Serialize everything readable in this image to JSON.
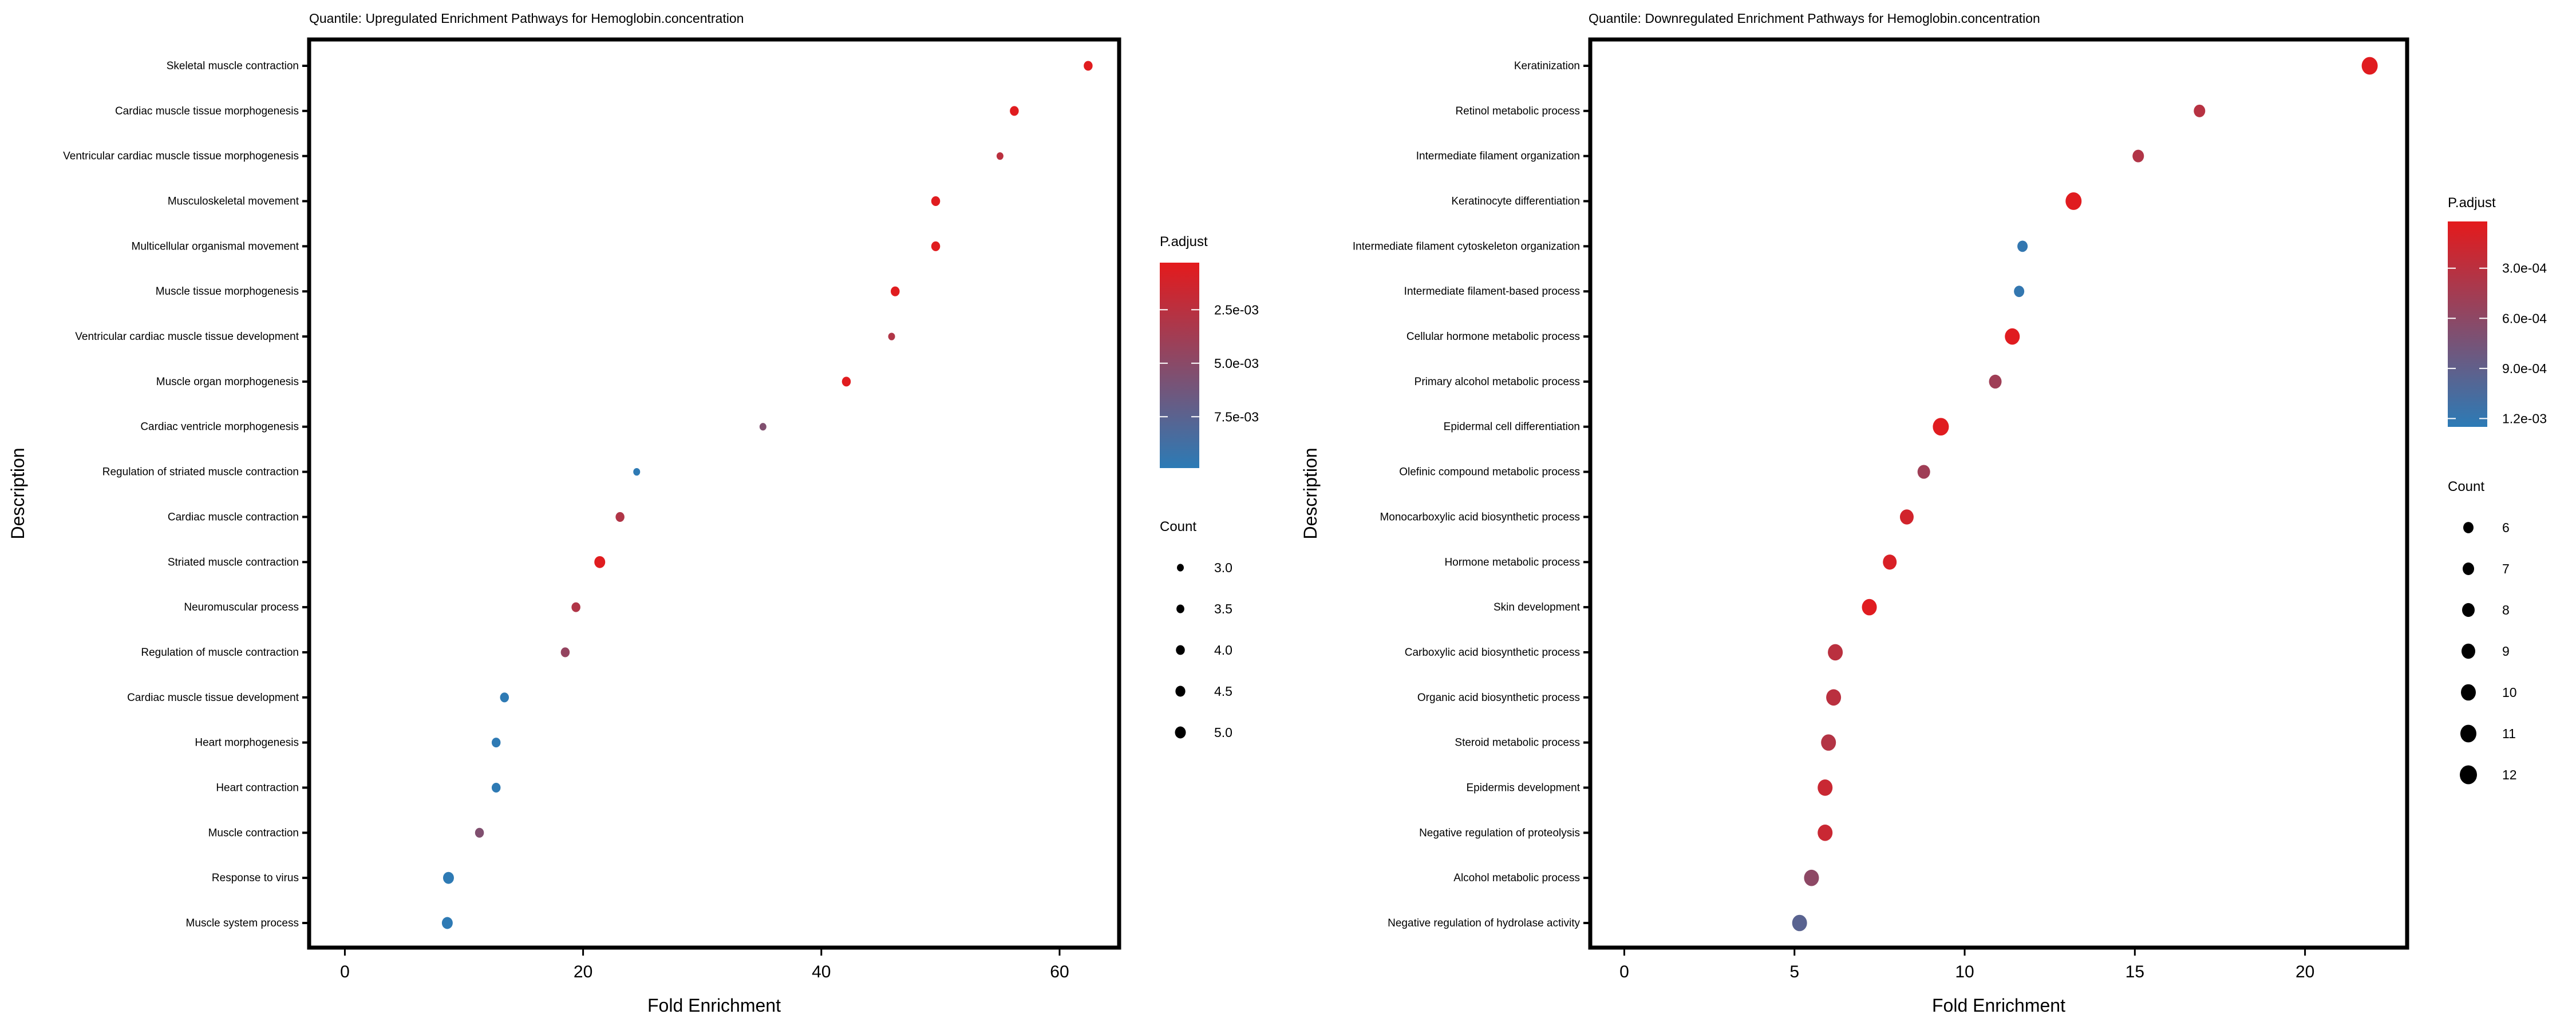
{
  "colors": {
    "low_p": "#E41A1C",
    "high_p": "#2C7BB6"
  },
  "chart_data": [
    {
      "type": "scatter",
      "title": "Quantile: Upregulated Enrichment Pathways for Hemoglobin.concentration",
      "xlabel": "Fold Enrichment",
      "ylabel": "Description",
      "xlim": [
        -3,
        65
      ],
      "xticks": [
        0,
        20,
        40,
        60
      ],
      "xtick_labels": [
        "0",
        "20",
        "40",
        "60"
      ],
      "grid": false,
      "color_legend": {
        "title": "P.adjust",
        "range": [
          0.0003,
          0.0099
        ],
        "ticks": [
          0.0025,
          0.005,
          0.0075
        ],
        "tick_labels": [
          "2.5e-03",
          "5.0e-03",
          "7.5e-03"
        ]
      },
      "size_legend": {
        "title": "Count",
        "range": [
          3,
          5
        ],
        "values": [
          3.0,
          3.5,
          4.0,
          4.5,
          5.0
        ],
        "labels": [
          "3.0",
          "3.5",
          "4.0",
          "4.5",
          "5.0"
        ]
      },
      "points": [
        {
          "description": "Skeletal muscle contraction",
          "fold_enrichment": 62.4,
          "count": 4,
          "p_adjust": 0.0005
        },
        {
          "description": "Cardiac muscle tissue morphogenesis",
          "fold_enrichment": 56.2,
          "count": 4,
          "p_adjust": 0.0005
        },
        {
          "description": "Ventricular cardiac muscle tissue morphogenesis",
          "fold_enrichment": 55.0,
          "count": 3,
          "p_adjust": 0.0025
        },
        {
          "description": "Musculoskeletal movement",
          "fold_enrichment": 49.6,
          "count": 4,
          "p_adjust": 0.0005
        },
        {
          "description": "Multicellular organismal movement",
          "fold_enrichment": 49.6,
          "count": 4,
          "p_adjust": 0.0005
        },
        {
          "description": "Muscle tissue morphogenesis",
          "fold_enrichment": 46.2,
          "count": 4,
          "p_adjust": 0.0005
        },
        {
          "description": "Ventricular cardiac muscle tissue development",
          "fold_enrichment": 45.9,
          "count": 3,
          "p_adjust": 0.003
        },
        {
          "description": "Muscle organ morphogenesis",
          "fold_enrichment": 42.1,
          "count": 4,
          "p_adjust": 0.0005
        },
        {
          "description": "Cardiac ventricle morphogenesis",
          "fold_enrichment": 35.1,
          "count": 3,
          "p_adjust": 0.0055
        },
        {
          "description": "Regulation of striated muscle contraction",
          "fold_enrichment": 24.5,
          "count": 3,
          "p_adjust": 0.0098
        },
        {
          "description": "Cardiac muscle contraction",
          "fold_enrichment": 23.1,
          "count": 4,
          "p_adjust": 0.003
        },
        {
          "description": "Striated muscle contraction",
          "fold_enrichment": 21.4,
          "count": 5,
          "p_adjust": 0.0005
        },
        {
          "description": "Neuromuscular process",
          "fold_enrichment": 19.4,
          "count": 4,
          "p_adjust": 0.003
        },
        {
          "description": "Regulation of muscle contraction",
          "fold_enrichment": 18.5,
          "count": 4,
          "p_adjust": 0.0045
        },
        {
          "description": "Cardiac muscle tissue development",
          "fold_enrichment": 13.4,
          "count": 4,
          "p_adjust": 0.0098
        },
        {
          "description": "Heart morphogenesis",
          "fold_enrichment": 12.7,
          "count": 4,
          "p_adjust": 0.0098
        },
        {
          "description": "Heart contraction",
          "fold_enrichment": 12.7,
          "count": 4,
          "p_adjust": 0.0098
        },
        {
          "description": "Muscle contraction",
          "fold_enrichment": 11.3,
          "count": 4,
          "p_adjust": 0.0055
        },
        {
          "description": "Response to virus",
          "fold_enrichment": 8.7,
          "count": 5,
          "p_adjust": 0.0098
        },
        {
          "description": "Muscle system process",
          "fold_enrichment": 8.6,
          "count": 5,
          "p_adjust": 0.0098
        }
      ]
    },
    {
      "type": "scatter",
      "title": "Quantile: Downregulated Enrichment Pathways for Hemoglobin.concentration",
      "xlabel": "Fold Enrichment",
      "ylabel": "Description",
      "xlim": [
        -1,
        23
      ],
      "xticks": [
        0,
        5,
        10,
        15,
        20
      ],
      "xtick_labels": [
        "0",
        "5",
        "10",
        "15",
        "20"
      ],
      "grid": false,
      "color_legend": {
        "title": "P.adjust",
        "range": [
          2e-05,
          0.00125
        ],
        "ticks": [
          0.0003,
          0.0006,
          0.0009,
          0.0012
        ],
        "tick_labels": [
          "3.0e-04",
          "6.0e-04",
          "9.0e-04",
          "1.2e-03"
        ]
      },
      "size_legend": {
        "title": "Count",
        "range": [
          6,
          12
        ],
        "values": [
          6,
          7,
          8,
          9,
          10,
          11,
          12
        ],
        "labels": [
          "6",
          "7",
          "8",
          "9",
          "10",
          "11",
          "12"
        ]
      },
      "points": [
        {
          "description": "Keratinization",
          "fold_enrichment": 21.9,
          "count": 11,
          "p_adjust": 5e-05
        },
        {
          "description": "Retinol metabolic process",
          "fold_enrichment": 16.9,
          "count": 7,
          "p_adjust": 0.00032
        },
        {
          "description": "Intermediate filament organization",
          "fold_enrichment": 15.1,
          "count": 7,
          "p_adjust": 0.00036
        },
        {
          "description": "Keratinocyte differentiation",
          "fold_enrichment": 13.2,
          "count": 11,
          "p_adjust": 5e-05
        },
        {
          "description": "Intermediate filament cytoskeleton organization",
          "fold_enrichment": 11.7,
          "count": 6,
          "p_adjust": 0.0012
        },
        {
          "description": "Intermediate filament-based process",
          "fold_enrichment": 11.6,
          "count": 6,
          "p_adjust": 0.0012
        },
        {
          "description": "Cellular hormone metabolic process",
          "fold_enrichment": 11.4,
          "count": 10,
          "p_adjust": 5e-05
        },
        {
          "description": "Primary alcohol metabolic process",
          "fold_enrichment": 10.9,
          "count": 8,
          "p_adjust": 0.00048
        },
        {
          "description": "Epidermal cell differentiation",
          "fold_enrichment": 9.3,
          "count": 11,
          "p_adjust": 5e-05
        },
        {
          "description": "Olefinic compound metabolic process",
          "fold_enrichment": 8.8,
          "count": 8,
          "p_adjust": 0.00048
        },
        {
          "description": "Monocarboxylic acid biosynthetic process",
          "fold_enrichment": 8.3,
          "count": 9,
          "p_adjust": 0.00015
        },
        {
          "description": "Hormone metabolic process",
          "fold_enrichment": 7.8,
          "count": 9,
          "p_adjust": 0.0001
        },
        {
          "description": "Skin development",
          "fold_enrichment": 7.2,
          "count": 10,
          "p_adjust": 5e-05
        },
        {
          "description": "Carboxylic acid biosynthetic process",
          "fold_enrichment": 6.2,
          "count": 10,
          "p_adjust": 0.0003
        },
        {
          "description": "Organic acid biosynthetic process",
          "fold_enrichment": 6.15,
          "count": 10,
          "p_adjust": 0.0003
        },
        {
          "description": "Steroid metabolic process",
          "fold_enrichment": 6.0,
          "count": 10,
          "p_adjust": 0.00035
        },
        {
          "description": "Epidermis development",
          "fold_enrichment": 5.9,
          "count": 10,
          "p_adjust": 0.0002
        },
        {
          "description": "Negative regulation of proteolysis",
          "fold_enrichment": 5.9,
          "count": 10,
          "p_adjust": 0.0002
        },
        {
          "description": "Alcohol metabolic process",
          "fold_enrichment": 5.5,
          "count": 10,
          "p_adjust": 0.0006
        },
        {
          "description": "Negative regulation of hydrolase activity",
          "fold_enrichment": 5.15,
          "count": 10,
          "p_adjust": 0.00095
        }
      ]
    }
  ]
}
